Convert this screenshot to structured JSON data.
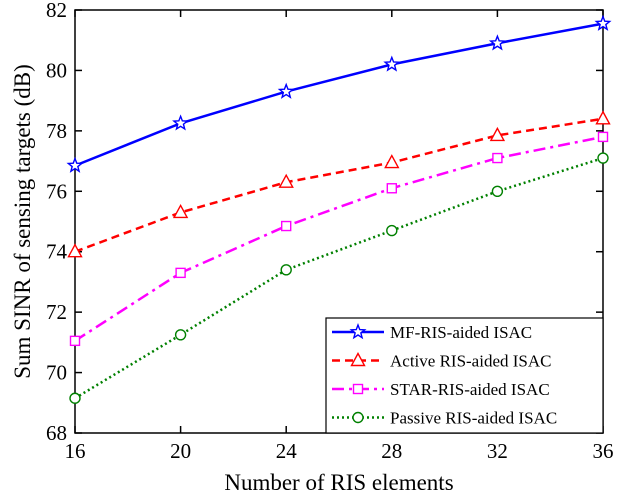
{
  "chart_data": {
    "type": "line",
    "xlabel": "Number of RIS elements",
    "ylabel": "Sum SINR of sensing targets (dB)",
    "xlim": [
      16,
      36
    ],
    "ylim": [
      68,
      82
    ],
    "xticks": [
      16,
      20,
      24,
      28,
      32,
      36
    ],
    "yticks": [
      68,
      70,
      72,
      74,
      76,
      78,
      80,
      82
    ],
    "x": [
      16,
      20,
      24,
      28,
      32,
      36
    ],
    "legend_position": "bottom-right",
    "grid": false,
    "series": [
      {
        "name": "MF-RIS-aided ISAC",
        "values": [
          76.85,
          78.25,
          79.3,
          80.2,
          80.9,
          81.55
        ],
        "color": "#0000ff",
        "line_style": "solid",
        "marker": "star"
      },
      {
        "name": "Active RIS-aided ISAC",
        "values": [
          74.0,
          75.3,
          76.3,
          76.95,
          77.85,
          78.4
        ],
        "color": "#ff0000",
        "line_style": "dashed",
        "marker": "triangle"
      },
      {
        "name": "STAR-RIS-aided ISAC",
        "values": [
          71.05,
          73.3,
          74.85,
          76.1,
          77.1,
          77.8
        ],
        "color": "#ff00ff",
        "line_style": "dash-dot",
        "marker": "square"
      },
      {
        "name": "Passive RIS-aided ISAC",
        "values": [
          69.15,
          71.25,
          73.4,
          74.7,
          76.0,
          77.1
        ],
        "color": "#008000",
        "line_style": "dotted",
        "marker": "circle"
      }
    ]
  }
}
